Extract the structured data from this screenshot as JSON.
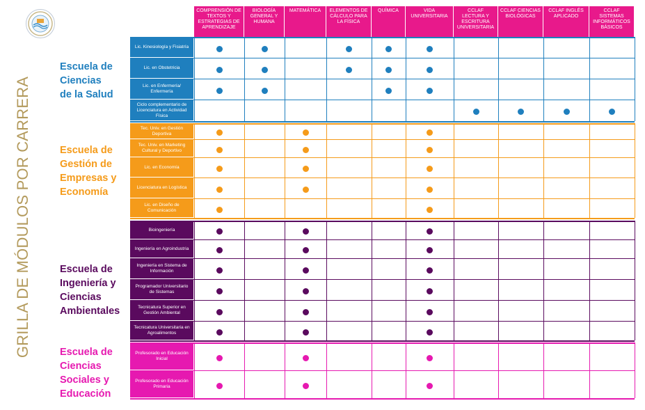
{
  "title": "GRILLA DE MÓDULOS POR CARRERA",
  "logo_icon": "university-seal-icon",
  "columns": [
    "COMPRENSIÓN DE TEXTOS Y ESTRATEGIAS DE APRENDIZAJE",
    "BIOLOGÍA GENERAL Y HUMANA",
    "MATEMÁTICA",
    "ELEMENTOS DE CÁLCULO PARA LA FÍSICA",
    "QUÍMICA",
    "VIDA UNIVERSITARIA",
    "CCLAF LECTURA Y ESCRITURA UNIVERSITARIA",
    "CCLAF CIENCIAS BIOLÓGICAS",
    "CCLAF INGLÉS APLICADO",
    "CCLAF SISTEMAS INFORMÁTICOS BÁSICOS"
  ],
  "colors": {
    "header": "#e8198b",
    "title": "#b39a5c"
  },
  "schools": [
    {
      "name_lines": [
        "Escuela de",
        "Ciencias",
        "de la Salud"
      ],
      "color": "#1f7fbe",
      "careers": [
        {
          "name": "Lic. Kinesiología y Fisiatría",
          "modules": [
            0,
            1,
            3,
            4,
            5
          ]
        },
        {
          "name": "Lic. en Obstetricia",
          "modules": [
            0,
            1,
            3,
            4,
            5
          ]
        },
        {
          "name": "Lic. en Enfermería/ Enfermería",
          "modules": [
            0,
            1,
            4,
            5
          ]
        },
        {
          "name": "Ciclo complementario de Licenciatura en Actividad Física",
          "modules": [
            6,
            7,
            8,
            9
          ]
        }
      ]
    },
    {
      "name_lines": [
        "Escuela de",
        "Gestión de",
        "Empresas y",
        "Economía"
      ],
      "color": "#f59b1a",
      "careers": [
        {
          "name": "Tec. Univ. en Gestión Deportiva",
          "modules": [
            0,
            2,
            5
          ]
        },
        {
          "name": "Tec. Univ. en Marketing Cultural y Deportivo",
          "modules": [
            0,
            2,
            5
          ]
        },
        {
          "name": "Lic. en Economía",
          "modules": [
            0,
            2,
            5
          ]
        },
        {
          "name": "Licenciatura en Logística",
          "modules": [
            0,
            2,
            5
          ]
        },
        {
          "name": "Lic. en Diseño de Comunicación",
          "modules": [
            0,
            5
          ]
        }
      ]
    },
    {
      "name_lines": [
        "Escuela de",
        "Ingeniería y",
        "Ciencias",
        "Ambientales"
      ],
      "color": "#5a0a5e",
      "careers": [
        {
          "name": "Bioingeniería",
          "modules": [
            0,
            2,
            5
          ]
        },
        {
          "name": "Ingeniería en Agroindustria",
          "modules": [
            0,
            2,
            5
          ]
        },
        {
          "name": "Ingeniería en Sistema de Información",
          "modules": [
            0,
            2,
            5
          ]
        },
        {
          "name": "Programador Universitario de Sistemas",
          "modules": [
            0,
            2,
            5
          ]
        },
        {
          "name": "Tecnicatura Superior en Gestión Ambiental",
          "modules": [
            0,
            2,
            5
          ]
        },
        {
          "name": "Tecnicatura Universitaria en Agroalimentos",
          "modules": [
            0,
            2,
            5
          ]
        }
      ]
    },
    {
      "name_lines": [
        "Escuela de",
        "Ciencias",
        "Sociales y",
        "Educación"
      ],
      "color": "#e619b0",
      "careers": [
        {
          "name": "Profesorado en Educación Inicial",
          "modules": [
            0,
            2,
            5
          ]
        },
        {
          "name": "Profesorado en Educación Primaria",
          "modules": [
            0,
            2,
            5
          ]
        }
      ]
    }
  ]
}
